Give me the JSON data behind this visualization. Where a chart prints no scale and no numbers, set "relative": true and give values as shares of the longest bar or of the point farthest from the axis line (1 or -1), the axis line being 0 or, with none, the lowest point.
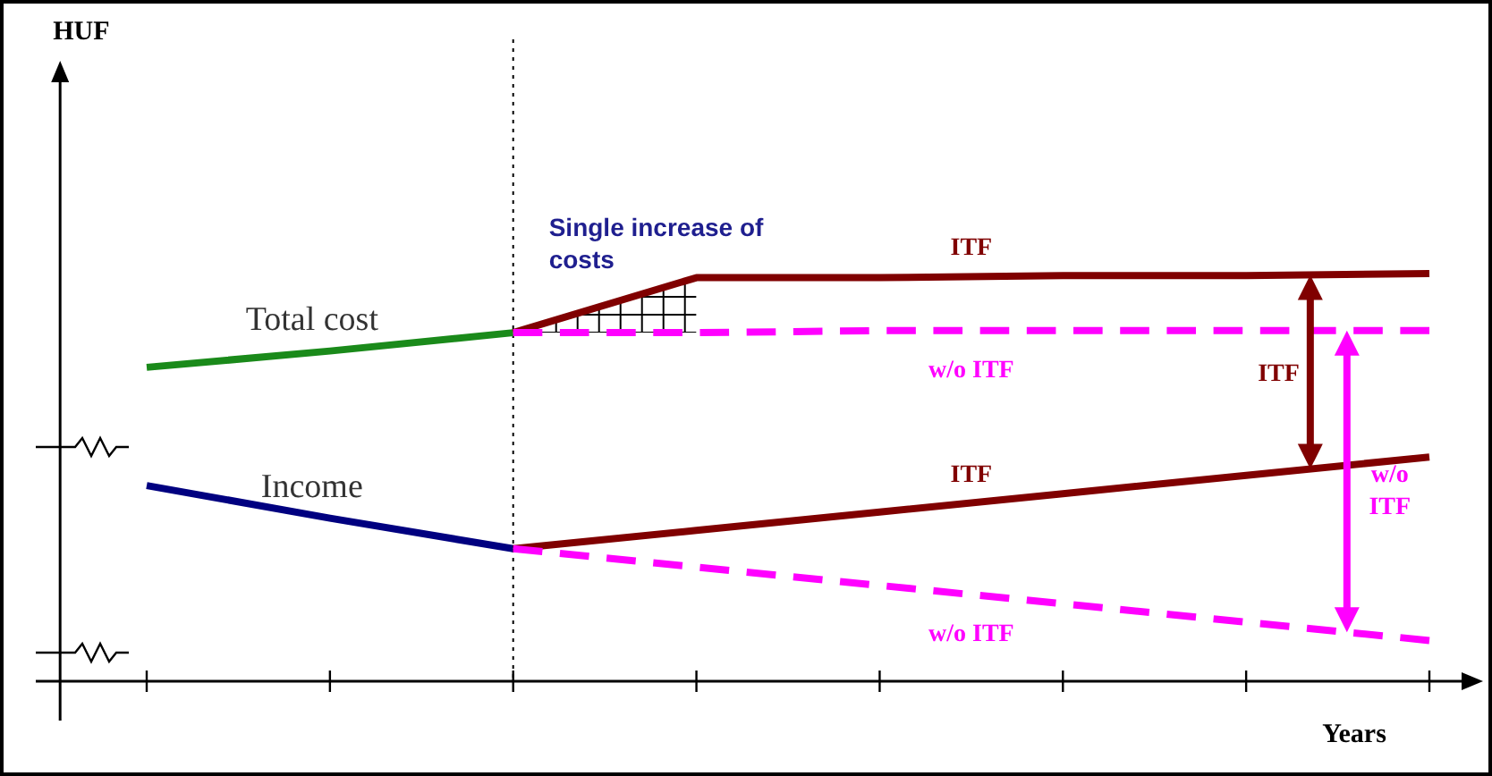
{
  "chart_data": {
    "type": "line",
    "relative": true,
    "xlabel": "Years",
    "categories": [
      null,
      null,
      null,
      null,
      null,
      null,
      null,
      null
    ],
    "tick_labels": false,
    "series": [
      {
        "name": "Total cost",
        "color": "#1a8a1a",
        "values": [
          0.77,
          0.81,
          0.855,
          null,
          null,
          null,
          null,
          null
        ]
      },
      {
        "name": "Income",
        "color": "#000080",
        "values": [
          0.48,
          0.4,
          0.325,
          null,
          null,
          null,
          null,
          null
        ]
      },
      {
        "name": "ITF",
        "color": "#800000",
        "values": [
          null,
          null,
          0.855,
          0.99,
          0.99,
          0.995,
          0.995,
          1
        ]
      },
      {
        "name": "w/o ITF",
        "color": "#ff00ff",
        "line_style": "dashed",
        "values": [
          null,
          null,
          0.855,
          0.855,
          0.86,
          0.86,
          0.86,
          0.86
        ]
      },
      {
        "name": "ITF",
        "color": "#800000",
        "values": [
          null,
          null,
          0.325,
          0.37,
          0.415,
          0.46,
          0.505,
          0.55
        ]
      },
      {
        "name": "w/o ITF",
        "color": "#ff00ff",
        "line_style": "dashed",
        "values": [
          null,
          null,
          0.325,
          0.28,
          0.235,
          0.19,
          0.145,
          0.1
        ]
      }
    ],
    "annotations": [
      "Single increase of costs",
      "ITF",
      "w/o ITF",
      "HUF"
    ]
  }
}
